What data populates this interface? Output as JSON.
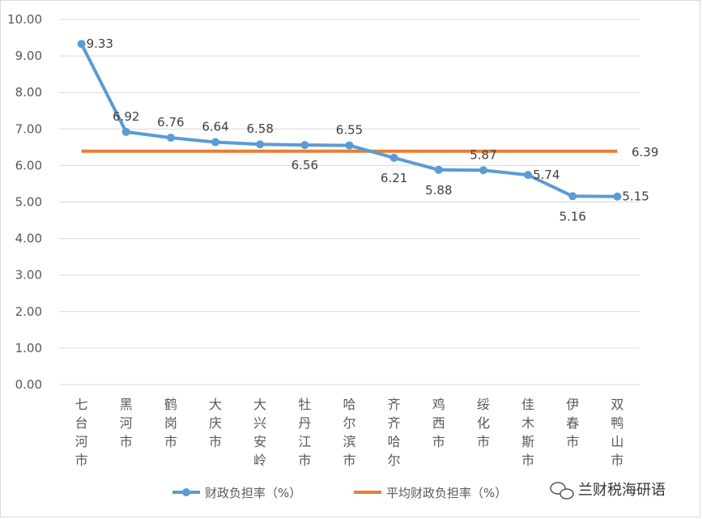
{
  "chart_data": {
    "type": "line",
    "categories": [
      "七台河市",
      "黑河市",
      "鹤岗市",
      "大庆市",
      "大兴安岭",
      "牡丹江市",
      "哈尔滨市",
      "齐齐哈尔",
      "鸡西市",
      "绥化市",
      "佳木斯市",
      "伊春市",
      "双鸭山市"
    ],
    "series": [
      {
        "name": "财政负担率（%）",
        "color": "#5b9bd5",
        "values": [
          9.33,
          6.92,
          6.76,
          6.64,
          6.58,
          6.56,
          6.55,
          6.21,
          5.88,
          5.87,
          5.74,
          5.16,
          5.15
        ],
        "labels": [
          "9.33",
          "6.92",
          "6.76",
          "6.64",
          "6.58",
          "6.56",
          "6.55",
          "6.21",
          "5.88",
          "5.87",
          "5.74",
          "5.16",
          "5.15"
        ]
      },
      {
        "name": "平均财政负担率（%）",
        "color": "#ed7d31",
        "values": [
          6.39,
          6.39,
          6.39,
          6.39,
          6.39,
          6.39,
          6.39,
          6.39,
          6.39,
          6.39,
          6.39,
          6.39,
          6.39
        ],
        "label": "6.39"
      }
    ],
    "yticks": [
      "0.00",
      "1.00",
      "2.00",
      "3.00",
      "4.00",
      "5.00",
      "6.00",
      "7.00",
      "8.00",
      "9.00",
      "10.00"
    ],
    "ylim": [
      0,
      10
    ],
    "grid": true,
    "legend_position": "bottom",
    "title": "",
    "xlabel": "",
    "ylabel": ""
  },
  "watermark": {
    "text": "兰财税海研语",
    "icon": "wechat-icon"
  }
}
